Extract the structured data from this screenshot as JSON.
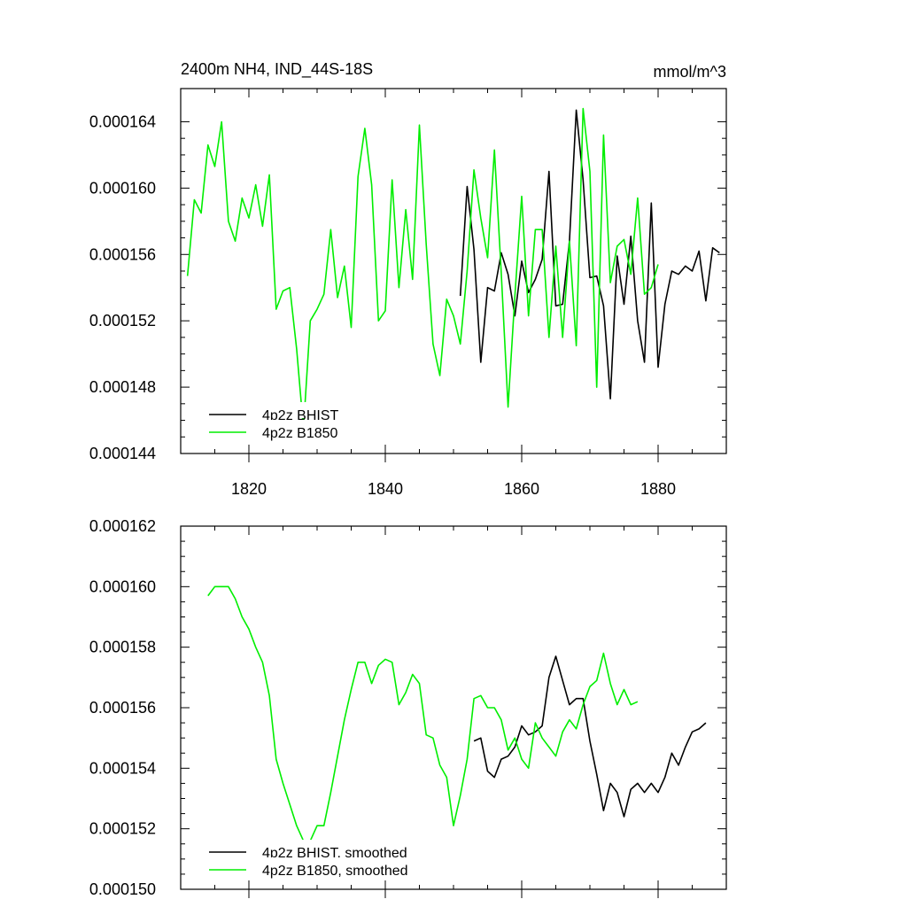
{
  "chart_data": [
    {
      "type": "line",
      "title": "2400m NH4, IND_44S-18S",
      "units": "mmol/m^3",
      "xlim": [
        1810,
        1890
      ],
      "ylim": [
        0.000144,
        0.000166
      ],
      "x_ticks": [
        1820,
        1840,
        1860,
        1880
      ],
      "x_tick_labels": [
        "1820",
        "1840",
        "1860",
        "1880"
      ],
      "y_ticks": [
        0.000144,
        0.000148,
        0.000152,
        0.000156,
        0.00016,
        0.000164
      ],
      "y_tick_labels": [
        "0.000144",
        "0.000148",
        "0.000152",
        "0.000156",
        "0.000160",
        "0.000164"
      ],
      "legend_position": "bottom-left",
      "series": [
        {
          "name": "4p2z BHIST",
          "color": "#000000",
          "x": [
            1851,
            1852,
            1853,
            1854,
            1855,
            1856,
            1857,
            1858,
            1859,
            1860,
            1861,
            1862,
            1863,
            1864,
            1865,
            1866,
            1867,
            1868,
            1869,
            1870,
            1871,
            1872,
            1873,
            1874,
            1875,
            1876,
            1877,
            1878,
            1879,
            1880,
            1881,
            1882,
            1883,
            1884,
            1885,
            1886,
            1887,
            1888,
            1889
          ],
          "y": [
            0.0001535,
            0.0001601,
            0.0001563,
            0.0001495,
            0.000154,
            0.0001538,
            0.0001561,
            0.0001548,
            0.0001523,
            0.0001556,
            0.0001537,
            0.0001545,
            0.0001557,
            0.000161,
            0.0001529,
            0.000153,
            0.0001568,
            0.0001647,
            0.0001605,
            0.0001546,
            0.0001547,
            0.0001529,
            0.0001473,
            0.0001559,
            0.000153,
            0.0001571,
            0.000152,
            0.0001495,
            0.0001591,
            0.0001492,
            0.000153,
            0.000155,
            0.0001548,
            0.0001553,
            0.000155,
            0.0001562,
            0.0001532,
            0.0001564,
            0.0001561
          ]
        },
        {
          "name": "4p2z B1850",
          "color": "#00ee00",
          "x": [
            1811,
            1812,
            1813,
            1814,
            1815,
            1816,
            1817,
            1818,
            1819,
            1820,
            1821,
            1822,
            1823,
            1824,
            1825,
            1826,
            1827,
            1828,
            1829,
            1830,
            1831,
            1832,
            1833,
            1834,
            1835,
            1836,
            1837,
            1838,
            1839,
            1840,
            1841,
            1842,
            1843,
            1844,
            1845,
            1846,
            1847,
            1848,
            1849,
            1850,
            1851,
            1852,
            1853,
            1854,
            1855,
            1856,
            1857,
            1858,
            1859,
            1860,
            1861,
            1862,
            1863,
            1864,
            1865,
            1866,
            1867,
            1868,
            1869,
            1870,
            1871,
            1872,
            1873,
            1874,
            1875,
            1876,
            1877,
            1878,
            1879,
            1880
          ],
          "y": [
            0.0001547,
            0.0001593,
            0.0001585,
            0.0001626,
            0.0001613,
            0.000164,
            0.000158,
            0.0001568,
            0.0001594,
            0.0001582,
            0.0001602,
            0.0001577,
            0.0001608,
            0.0001527,
            0.0001538,
            0.000154,
            0.0001503,
            0.0001455,
            0.000152,
            0.0001527,
            0.0001536,
            0.0001575,
            0.0001534,
            0.0001553,
            0.0001516,
            0.0001607,
            0.0001636,
            0.0001602,
            0.000152,
            0.0001526,
            0.0001605,
            0.000154,
            0.0001587,
            0.0001545,
            0.0001638,
            0.0001566,
            0.0001506,
            0.0001487,
            0.0001533,
            0.0001523,
            0.0001506,
            0.000155,
            0.0001611,
            0.0001582,
            0.0001558,
            0.0001623,
            0.0001549,
            0.0001468,
            0.0001535,
            0.0001595,
            0.0001523,
            0.0001575,
            0.0001575,
            0.000151,
            0.0001565,
            0.000151,
            0.0001568,
            0.0001505,
            0.0001648,
            0.000161,
            0.000148,
            0.0001632,
            0.0001543,
            0.0001565,
            0.0001569,
            0.0001548,
            0.0001594,
            0.0001536,
            0.000154,
            0.0001554
          ]
        }
      ]
    },
    {
      "type": "line",
      "xlim": [
        1810,
        1890
      ],
      "ylim": [
        0.00015,
        0.000162
      ],
      "x_ticks": [
        1820,
        1840,
        1860,
        1880
      ],
      "y_ticks": [
        0.00015,
        0.000152,
        0.000154,
        0.000156,
        0.000158,
        0.00016,
        0.000162
      ],
      "y_tick_labels": [
        "0.000150",
        "0.000152",
        "0.000154",
        "0.000156",
        "0.000158",
        "0.000160",
        "0.000162"
      ],
      "legend_position": "bottom-left",
      "series": [
        {
          "name": "4p2z BHIST, smoothed",
          "color": "#000000",
          "x": [
            1853,
            1854,
            1855,
            1856,
            1857,
            1858,
            1859,
            1860,
            1861,
            1862,
            1863,
            1864,
            1865,
            1866,
            1867,
            1868,
            1869,
            1870,
            1871,
            1872,
            1873,
            1874,
            1875,
            1876,
            1877,
            1878,
            1879,
            1880,
            1881,
            1882,
            1883,
            1884,
            1885,
            1886,
            1887
          ],
          "y": [
            0.0001549,
            0.000155,
            0.0001539,
            0.0001537,
            0.0001543,
            0.0001544,
            0.0001547,
            0.0001554,
            0.0001551,
            0.0001552,
            0.0001554,
            0.000157,
            0.0001577,
            0.0001569,
            0.0001561,
            0.0001563,
            0.0001563,
            0.0001549,
            0.0001538,
            0.0001526,
            0.0001535,
            0.0001532,
            0.0001524,
            0.0001533,
            0.0001535,
            0.0001532,
            0.0001535,
            0.0001532,
            0.0001537,
            0.0001545,
            0.0001541,
            0.0001547,
            0.0001552,
            0.0001553,
            0.0001555
          ]
        },
        {
          "name": "4p2z B1850, smoothed",
          "color": "#00ee00",
          "x": [
            1814,
            1815,
            1816,
            1817,
            1818,
            1819,
            1820,
            1821,
            1822,
            1823,
            1824,
            1825,
            1826,
            1827,
            1828,
            1829,
            1830,
            1831,
            1832,
            1833,
            1834,
            1835,
            1836,
            1837,
            1838,
            1839,
            1840,
            1841,
            1842,
            1843,
            1844,
            1845,
            1846,
            1847,
            1848,
            1849,
            1850,
            1851,
            1852,
            1853,
            1854,
            1855,
            1856,
            1857,
            1858,
            1859,
            1860,
            1861,
            1862,
            1863,
            1864,
            1865,
            1866,
            1867,
            1868,
            1869,
            1870,
            1871,
            1872,
            1873,
            1874,
            1875,
            1876,
            1877
          ],
          "y": [
            0.0001597,
            0.00016,
            0.00016,
            0.00016,
            0.0001596,
            0.000159,
            0.0001586,
            0.000158,
            0.0001575,
            0.0001564,
            0.0001543,
            0.0001535,
            0.0001528,
            0.0001521,
            0.0001516,
            0.0001516,
            0.0001521,
            0.0001521,
            0.0001532,
            0.0001544,
            0.0001556,
            0.0001566,
            0.0001575,
            0.0001575,
            0.0001568,
            0.0001574,
            0.0001576,
            0.0001575,
            0.0001561,
            0.0001565,
            0.0001571,
            0.0001568,
            0.0001551,
            0.000155,
            0.0001541,
            0.0001537,
            0.0001521,
            0.0001531,
            0.0001543,
            0.0001563,
            0.0001564,
            0.000156,
            0.000156,
            0.0001556,
            0.0001546,
            0.000155,
            0.0001543,
            0.000154,
            0.0001555,
            0.000155,
            0.0001547,
            0.0001544,
            0.0001552,
            0.0001556,
            0.0001553,
            0.0001561,
            0.0001567,
            0.0001569,
            0.0001578,
            0.0001568,
            0.0001561,
            0.0001566,
            0.0001561,
            0.0001562
          ]
        }
      ]
    }
  ]
}
